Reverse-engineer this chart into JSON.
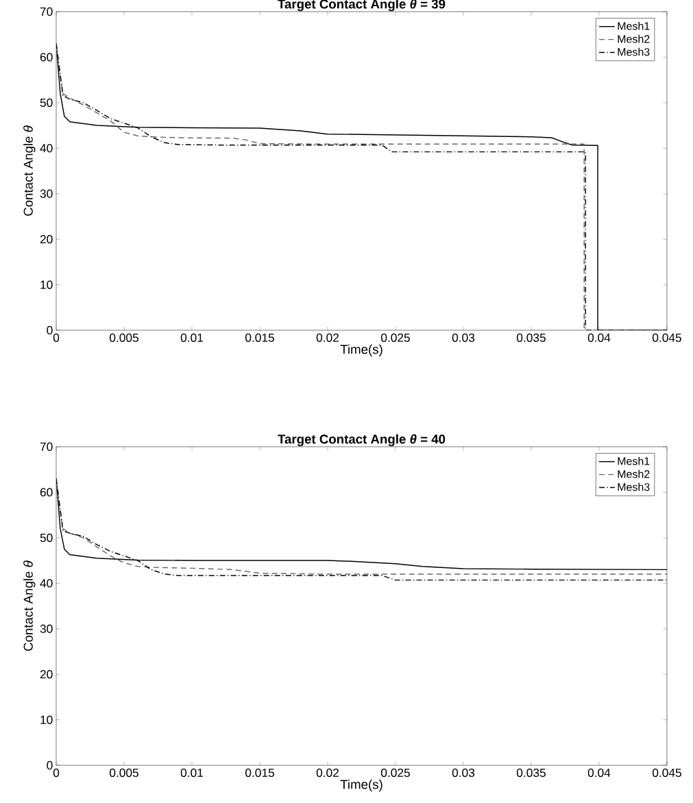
{
  "chart_data": [
    {
      "type": "line",
      "title": "**Target Contact Angle *θ* = 39**",
      "xlabel": "Time(s)",
      "ylabel": "Contact Angle *θ*",
      "xlim": [
        0,
        0.045
      ],
      "ylim": [
        0,
        70
      ],
      "xticks": [
        0,
        0.005,
        0.01,
        0.015,
        0.02,
        0.025,
        0.03,
        0.035,
        0.04,
        0.045
      ],
      "yticks": [
        0,
        10,
        20,
        30,
        40,
        50,
        60,
        70
      ],
      "legend": "top right",
      "series": [
        {
          "name": "Mesh1",
          "color": "#000000",
          "line_style": "solid",
          "x": [
            0,
            0.0003,
            0.0006,
            0.001,
            0.003,
            0.006,
            0.01,
            0.015,
            0.018,
            0.02,
            0.025,
            0.03,
            0.035,
            0.0365,
            0.0375,
            0.038,
            0.0399,
            0.0399,
            0.045
          ],
          "values": [
            63,
            52,
            47,
            45.8,
            45,
            44.6,
            44.5,
            44.4,
            43.8,
            43.1,
            42.9,
            42.7,
            42.5,
            42.3,
            41.2,
            40.7,
            40.6,
            0,
            0
          ]
        },
        {
          "name": "Mesh2",
          "color": "#666666",
          "line_style": "dashed",
          "x": [
            0,
            0.0005,
            0.001,
            0.002,
            0.004,
            0.005,
            0.006,
            0.007,
            0.009,
            0.013,
            0.014,
            0.015,
            0.02,
            0.0389,
            0.0389,
            0.045
          ],
          "values": [
            62,
            52,
            51,
            49.5,
            46,
            43.5,
            42.7,
            42.5,
            42.3,
            42.2,
            41.8,
            41,
            40.9,
            40.9,
            0,
            0
          ]
        },
        {
          "name": "Mesh3",
          "color": "#000000",
          "line_style": "dashdot",
          "x": [
            0,
            0.0005,
            0.001,
            0.002,
            0.003,
            0.004,
            0.005,
            0.006,
            0.007,
            0.008,
            0.009,
            0.012,
            0.024,
            0.0247,
            0.039,
            0.039,
            0.045
          ],
          "values": [
            63,
            51.5,
            50.8,
            50,
            48.3,
            46.5,
            45.5,
            44.5,
            42.5,
            41.2,
            40.8,
            40.7,
            40.7,
            39.2,
            39.2,
            0,
            0
          ]
        }
      ]
    },
    {
      "type": "line",
      "title": "**Target Contact Angle *θ* = 40**",
      "xlabel": "Time(s)",
      "ylabel": "Contact Angle *θ*",
      "xlim": [
        0,
        0.045
      ],
      "ylim": [
        0,
        70
      ],
      "xticks": [
        0,
        0.005,
        0.01,
        0.015,
        0.02,
        0.025,
        0.03,
        0.035,
        0.04,
        0.045
      ],
      "yticks": [
        0,
        10,
        20,
        30,
        40,
        50,
        60,
        70
      ],
      "legend": "top right",
      "series": [
        {
          "name": "Mesh1",
          "color": "#000000",
          "line_style": "solid",
          "x": [
            0,
            0.0003,
            0.0006,
            0.001,
            0.003,
            0.006,
            0.01,
            0.02,
            0.022,
            0.025,
            0.027,
            0.03,
            0.035,
            0.045
          ],
          "values": [
            63,
            52,
            47.5,
            46.3,
            45.5,
            45.1,
            45,
            45,
            44.8,
            44.3,
            43.7,
            43.2,
            43.1,
            43
          ]
        },
        {
          "name": "Mesh2",
          "color": "#666666",
          "line_style": "dashed",
          "x": [
            0,
            0.0005,
            0.001,
            0.002,
            0.004,
            0.005,
            0.006,
            0.007,
            0.01,
            0.013,
            0.015,
            0.02,
            0.045
          ],
          "values": [
            62,
            52,
            51,
            50,
            46,
            44.5,
            43.7,
            43.5,
            43.3,
            43,
            42.2,
            42,
            42
          ]
        },
        {
          "name": "Mesh3",
          "color": "#000000",
          "line_style": "dashdot",
          "x": [
            0,
            0.0005,
            0.001,
            0.002,
            0.003,
            0.004,
            0.005,
            0.006,
            0.007,
            0.008,
            0.009,
            0.024,
            0.025,
            0.045
          ],
          "values": [
            63,
            51.5,
            51,
            50.3,
            48.5,
            47,
            46,
            45,
            43,
            42,
            41.7,
            41.7,
            40.7,
            40.7
          ]
        }
      ]
    }
  ]
}
